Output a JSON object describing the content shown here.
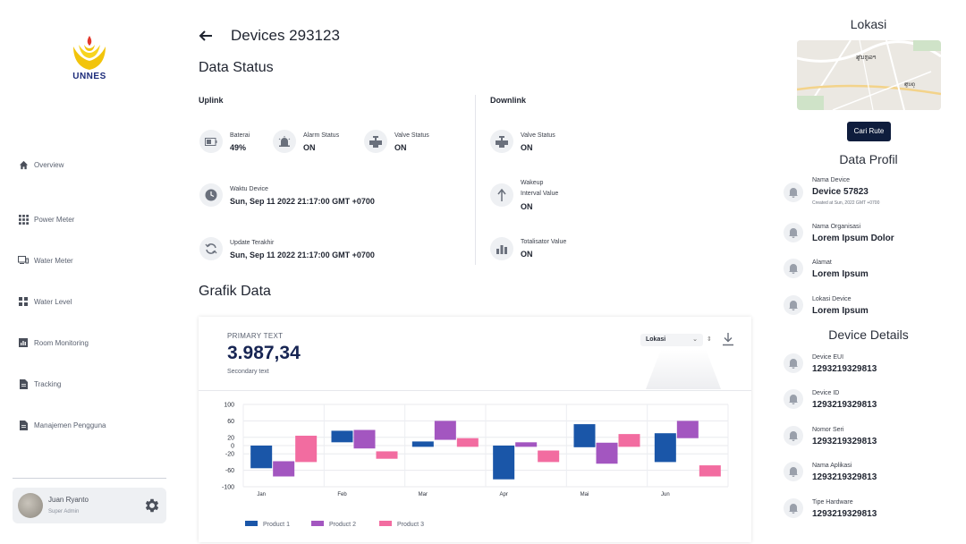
{
  "logo": {
    "text": "UNNES"
  },
  "sidebar": {
    "items": [
      {
        "label": "Overview",
        "icon": "home-icon"
      },
      {
        "label": "Power Meter",
        "icon": "grid-icon"
      },
      {
        "label": "Water Meter",
        "icon": "devices-icon"
      },
      {
        "label": "Water Level",
        "icon": "dashboard-icon"
      },
      {
        "label": "Room Monitoring",
        "icon": "chart-icon"
      },
      {
        "label": "Tracking",
        "icon": "document-icon"
      },
      {
        "label": "Manajemen Pengguna",
        "icon": "document-icon"
      }
    ],
    "user": {
      "name": "Juan Ryanto",
      "role": "Super Admin"
    }
  },
  "header": {
    "title": "Devices 293123"
  },
  "data_status": {
    "title": "Data Status",
    "uplink": {
      "title": "Uplink",
      "baterai": {
        "label": "Baterai",
        "value": "49%"
      },
      "alarm": {
        "label": "Alarm Status",
        "value": "ON"
      },
      "valve": {
        "label": "Valve Status",
        "value": "ON"
      },
      "waktu": {
        "label": "Waktu Device",
        "value": "Sun, Sep 11 2022 21:17:00 GMT +0700"
      },
      "update": {
        "label": "Update Terakhir",
        "value": "Sun, Sep 11 2022 21:17:00 GMT +0700"
      }
    },
    "downlink": {
      "title": "Downlink",
      "valve": {
        "label": "Valve Status",
        "value": "ON"
      },
      "wakeup": {
        "label1": "Wakeup",
        "label2": "Interval Value",
        "value": "ON"
      },
      "totalisator": {
        "label": "Totalisator Value",
        "value": "ON"
      }
    }
  },
  "grafik": {
    "title": "Grafik Data",
    "primary_text": "PRIMARY TEXT",
    "big_number": "3.987,34",
    "secondary_text": "Secondary text",
    "select_value": "Lokasi"
  },
  "chart_data": {
    "type": "bar",
    "categories": [
      "Jan",
      "Feb",
      "Mar",
      "Apr",
      "Mai",
      "Jun"
    ],
    "ylim": [
      -100,
      100
    ],
    "yticks": [
      100,
      60,
      20,
      0,
      -20,
      -60,
      -100
    ],
    "series": [
      {
        "name": "Product 1",
        "color": "#1a56a8",
        "ranges": [
          [
            -55,
            0
          ],
          [
            8,
            36
          ],
          [
            -3,
            10
          ],
          [
            -82,
            0
          ],
          [
            -4,
            52
          ],
          [
            -40,
            30
          ]
        ]
      },
      {
        "name": "Product 2",
        "color": "#a356c0",
        "ranges": [
          [
            -75,
            -38
          ],
          [
            -7,
            38
          ],
          [
            14,
            60
          ],
          [
            -3,
            8
          ],
          [
            -44,
            7
          ],
          [
            18,
            60
          ]
        ]
      },
      {
        "name": "Product 3",
        "color": "#f26ca0",
        "ranges": [
          [
            -40,
            24
          ],
          [
            -32,
            -14
          ],
          [
            -3,
            18
          ],
          [
            -40,
            -12
          ],
          [
            -3,
            28
          ],
          [
            -75,
            -48
          ]
        ]
      }
    ]
  },
  "right_panel": {
    "lokasi_title": "Lokasi",
    "map_labels": [
      "ສູນກູລາ",
      "ສູນຄຸ"
    ],
    "route_button": "Cari Rute",
    "profil_title": "Data Profil",
    "profil": [
      {
        "label": "Nama Device",
        "value": "Device 57823",
        "note": "Created at Sun, 2022 GMT +0700"
      },
      {
        "label": "Nama Organisasi",
        "value": "Lorem Ipsum Dolor"
      },
      {
        "label": "Alamat",
        "value": "Lorem Ipsum"
      },
      {
        "label": "Lokasi Device",
        "value": "Lorem Ipsum"
      }
    ],
    "details_title": "Device Details",
    "details": [
      {
        "label": "Device EUI",
        "value": "1293219329813"
      },
      {
        "label": "Device ID",
        "value": "1293219329813"
      },
      {
        "label": "Nomor Seri",
        "value": "1293219329813"
      },
      {
        "label": "Nama Aplikasi",
        "value": "1293219329813"
      },
      {
        "label": "Tipe Hardware",
        "value": "1293219329813"
      }
    ]
  }
}
